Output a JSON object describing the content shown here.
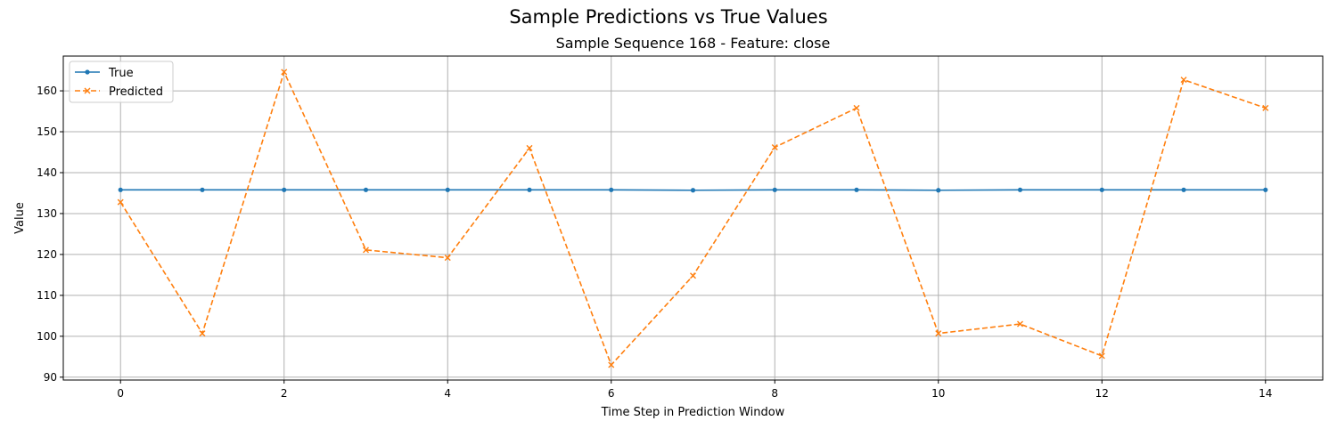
{
  "chart_data": {
    "type": "line",
    "suptitle": "Sample Predictions vs True Values",
    "title": "Sample Sequence 168 - Feature: close",
    "xlabel": "Time Step in Prediction Window",
    "ylabel": "Value",
    "x": [
      0,
      1,
      2,
      3,
      4,
      5,
      6,
      7,
      8,
      9,
      10,
      11,
      12,
      13,
      14
    ],
    "xlim": [
      -0.7,
      14.7
    ],
    "ylim": [
      89.3,
      168.5
    ],
    "xticks": [
      0,
      2,
      4,
      6,
      8,
      10,
      12,
      14
    ],
    "yticks": [
      90,
      100,
      110,
      120,
      130,
      140,
      150,
      160
    ],
    "grid": true,
    "legend_position": "upper-left",
    "series": [
      {
        "name": "True",
        "color": "#1f77b4",
        "style": "solid",
        "marker": "dot",
        "values": [
          135.8,
          135.8,
          135.8,
          135.8,
          135.8,
          135.8,
          135.8,
          135.7,
          135.8,
          135.8,
          135.7,
          135.8,
          135.8,
          135.8,
          135.8
        ]
      },
      {
        "name": "Predicted",
        "color": "#ff7f0e",
        "style": "dashed",
        "marker": "x",
        "values": [
          132.8,
          100.7,
          164.6,
          121.1,
          119.2,
          146.0,
          93.0,
          114.8,
          146.2,
          155.8,
          100.7,
          103.0,
          95.2,
          162.7,
          155.8
        ]
      }
    ]
  }
}
